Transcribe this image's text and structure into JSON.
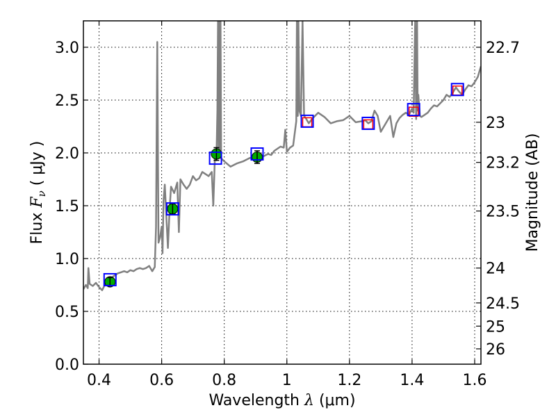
{
  "chart_data": {
    "type": "line",
    "xlabel_prefix": "Wavelength",
    "xlabel_symbol": "λ",
    "xlabel_unit": "(μm)",
    "ylabel_prefix": "Flux",
    "ylabel_symbol": "F",
    "ylabel_subscript": "ν",
    "ylabel_unit": "( μJy )",
    "ylabel_right": "Magnitude (AB)",
    "xlim": [
      0.35,
      1.62
    ],
    "ylim": [
      0.0,
      3.25
    ],
    "grid": true,
    "x_ticks": [
      0.4,
      0.6,
      0.8,
      1.0,
      1.2,
      1.4,
      1.6
    ],
    "x_tick_labels": [
      "0.4",
      "0.6",
      "0.8",
      "1",
      "1.2",
      "1.4",
      "1.6"
    ],
    "y_ticks": [
      0.0,
      0.5,
      1.0,
      1.5,
      2.0,
      2.5,
      3.0
    ],
    "y_tick_labels": [
      "0.0",
      "0.5",
      "1.0",
      "1.5",
      "2.0",
      "2.5",
      "3.0"
    ],
    "right_ticks": [
      {
        "label": "22.7",
        "flux": 3.0
      },
      {
        "label": "23",
        "flux": 2.29
      },
      {
        "label": "23.2",
        "flux": 1.91
      },
      {
        "label": "23.5",
        "flux": 1.45
      },
      {
        "label": "24",
        "flux": 0.91
      },
      {
        "label": "24.5",
        "flux": 0.58
      },
      {
        "label": "25",
        "flux": 0.36
      },
      {
        "label": "26",
        "flux": 0.145
      }
    ],
    "series": [
      {
        "kind": "model_spectrum",
        "color": "#808080",
        "x": [
          0.35,
          0.358,
          0.364,
          0.366,
          0.37,
          0.38,
          0.39,
          0.4,
          0.41,
          0.42,
          0.43,
          0.44,
          0.45,
          0.46,
          0.47,
          0.48,
          0.49,
          0.5,
          0.51,
          0.52,
          0.53,
          0.54,
          0.55,
          0.56,
          0.57,
          0.578,
          0.582,
          0.584,
          0.586,
          0.588,
          0.59,
          0.595,
          0.6,
          0.603,
          0.606,
          0.61,
          0.62,
          0.625,
          0.63,
          0.64,
          0.65,
          0.655,
          0.66,
          0.67,
          0.68,
          0.69,
          0.7,
          0.71,
          0.72,
          0.73,
          0.74,
          0.75,
          0.76,
          0.765,
          0.77,
          0.775,
          0.778,
          0.78,
          0.782,
          0.784,
          0.786,
          0.788,
          0.79,
          0.8,
          0.82,
          0.84,
          0.86,
          0.88,
          0.9,
          0.92,
          0.94,
          0.95,
          0.96,
          0.98,
          0.99,
          0.995,
          1.0,
          1.01,
          1.02,
          1.03,
          1.032,
          1.035,
          1.037,
          1.04,
          1.045,
          1.05,
          1.055,
          1.06,
          1.07,
          1.08,
          1.09,
          1.1,
          1.12,
          1.14,
          1.16,
          1.18,
          1.2,
          1.22,
          1.24,
          1.25,
          1.26,
          1.27,
          1.28,
          1.29,
          1.3,
          1.31,
          1.32,
          1.33,
          1.34,
          1.35,
          1.36,
          1.37,
          1.38,
          1.39,
          1.4,
          1.405,
          1.41,
          1.413,
          1.416,
          1.418,
          1.42,
          1.425,
          1.43,
          1.44,
          1.45,
          1.46,
          1.47,
          1.48,
          1.49,
          1.5,
          1.51,
          1.52,
          1.53,
          1.54,
          1.55,
          1.56,
          1.57,
          1.58,
          1.59,
          1.6,
          1.61,
          1.62
        ],
        "y": [
          0.71,
          0.75,
          0.72,
          0.91,
          0.76,
          0.74,
          0.77,
          0.73,
          0.7,
          0.76,
          0.8,
          0.82,
          0.84,
          0.86,
          0.87,
          0.88,
          0.87,
          0.89,
          0.88,
          0.9,
          0.91,
          0.9,
          0.91,
          0.93,
          0.88,
          0.92,
          1.3,
          2.2,
          3.05,
          2.0,
          1.15,
          1.2,
          1.3,
          1.05,
          1.55,
          1.7,
          1.1,
          1.45,
          1.68,
          1.62,
          1.72,
          1.25,
          1.75,
          1.7,
          1.66,
          1.7,
          1.78,
          1.74,
          1.76,
          1.82,
          1.8,
          1.78,
          1.82,
          1.5,
          1.96,
          1.93,
          2.4,
          3.25,
          1.95,
          3.25,
          1.95,
          3.25,
          1.95,
          1.92,
          1.87,
          1.9,
          1.92,
          1.95,
          1.97,
          1.96,
          1.99,
          1.98,
          2.02,
          2.06,
          2.05,
          2.22,
          2.01,
          2.05,
          2.07,
          2.3,
          3.25,
          2.35,
          3.25,
          2.4,
          2.35,
          3.25,
          2.35,
          2.33,
          2.28,
          2.32,
          2.35,
          2.38,
          2.34,
          2.28,
          2.3,
          2.31,
          2.35,
          2.29,
          2.3,
          2.31,
          2.28,
          2.3,
          2.4,
          2.35,
          2.2,
          2.25,
          2.3,
          2.35,
          2.15,
          2.28,
          2.33,
          2.36,
          2.38,
          2.36,
          2.42,
          2.38,
          3.25,
          2.32,
          3.25,
          2.4,
          2.55,
          2.35,
          2.34,
          2.36,
          2.38,
          2.42,
          2.45,
          2.44,
          2.47,
          2.5,
          2.55,
          2.53,
          2.57,
          2.62,
          2.58,
          2.55,
          2.6,
          2.64,
          2.63,
          2.67,
          2.72,
          2.82
        ]
      },
      {
        "kind": "model_fluxes",
        "color": "#0000ff",
        "x": [
          0.435,
          0.635,
          0.772,
          0.905,
          1.065,
          1.26,
          1.405,
          1.545
        ],
        "y": [
          0.8,
          1.47,
          1.95,
          1.99,
          2.3,
          2.28,
          2.41,
          2.6
        ]
      },
      {
        "kind": "synthetic_fluxes",
        "color": "#ff0000",
        "x": [
          1.065,
          1.26,
          1.405,
          1.545
        ],
        "y": [
          2.29,
          2.27,
          2.39,
          2.59
        ]
      },
      {
        "kind": "observed_photometry",
        "color": "#00aa00",
        "x": [
          0.435,
          0.635,
          0.775,
          0.905
        ],
        "y": [
          0.78,
          1.47,
          1.99,
          1.96
        ],
        "err": [
          0.04,
          0.05,
          0.06,
          0.06
        ]
      }
    ]
  }
}
